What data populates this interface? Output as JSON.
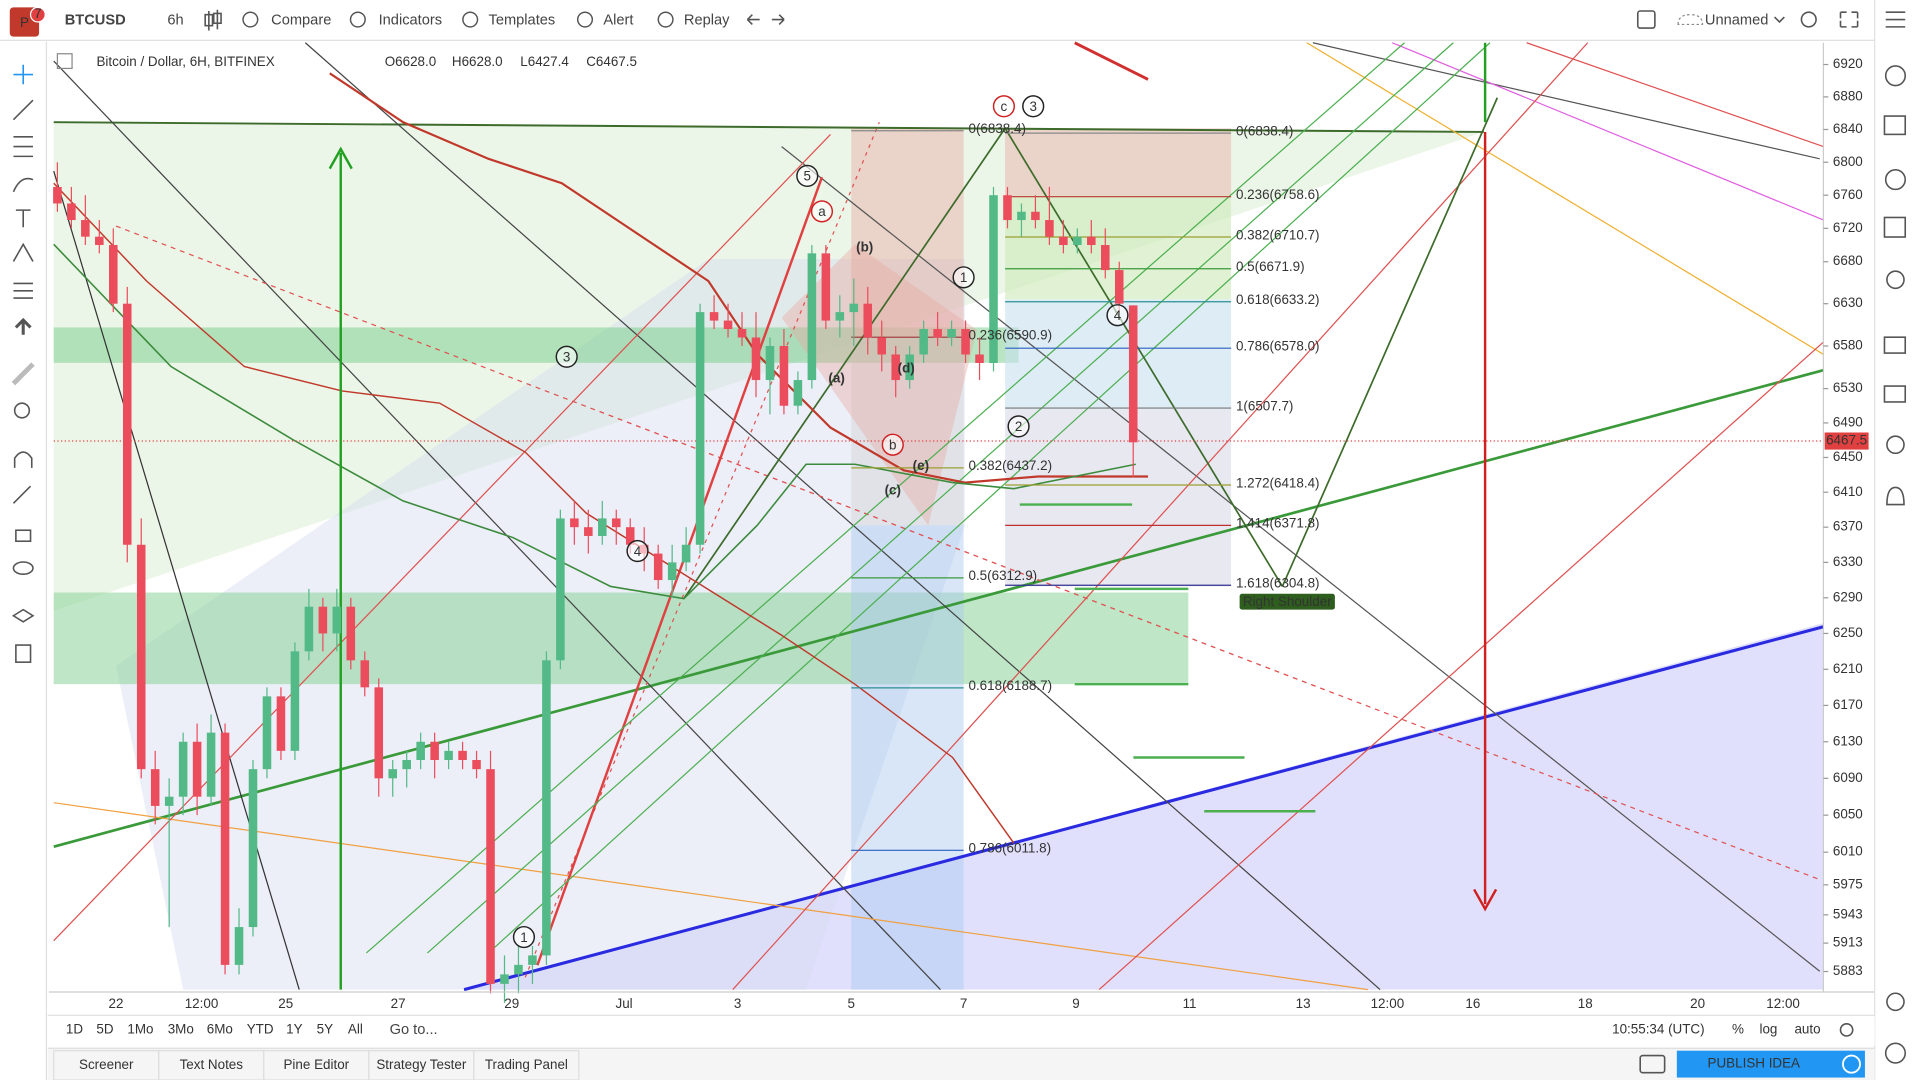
{
  "toolbar": {
    "logo": "P",
    "badge": "7",
    "symbol": "BTCUSD",
    "interval": "6h",
    "items": [
      "Compare",
      "Indicators",
      "Templates",
      "Alert",
      "Replay"
    ],
    "layout_name": "Unnamed"
  },
  "legend": {
    "title": "Bitcoin / Dollar, 6H, BITFINEX",
    "open": "O6628.0",
    "high": "H6628.0",
    "low": "L6427.4",
    "close": "C6467.5"
  },
  "price_axis": {
    "scale": "log",
    "ylim": [
      5864,
      6947
    ],
    "yticks": [
      6920,
      6880,
      6840,
      6800,
      6760,
      6720,
      6680,
      6630,
      6580,
      6530,
      6490,
      6450,
      6410,
      6370,
      6330,
      6290,
      6250,
      6210,
      6170,
      6130,
      6090,
      6050,
      6010,
      5975,
      5943,
      5913,
      5883
    ],
    "last_price": "6467.5"
  },
  "time_axis": {
    "labels": [
      "22",
      "12:00",
      "25",
      "27",
      "29",
      "Jul",
      "3",
      "5",
      "7",
      "9",
      "11",
      "13",
      "12:00",
      "16",
      "18",
      "20",
      "12:00"
    ]
  },
  "candles": {
    "up_color": "#53b987",
    "down_color": "#eb4d5c",
    "ohlc": [
      [
        6770,
        6800,
        6740,
        6750
      ],
      [
        6750,
        6770,
        6720,
        6730
      ],
      [
        6730,
        6760,
        6700,
        6710
      ],
      [
        6710,
        6730,
        6690,
        6700
      ],
      [
        6700,
        6720,
        6620,
        6630
      ],
      [
        6630,
        6650,
        6330,
        6350
      ],
      [
        6350,
        6380,
        6090,
        6100
      ],
      [
        6100,
        6120,
        6040,
        6060
      ],
      [
        6060,
        6090,
        5930,
        6070
      ],
      [
        6070,
        6140,
        6050,
        6130
      ],
      [
        6130,
        6150,
        6050,
        6070
      ],
      [
        6070,
        6160,
        6060,
        6140
      ],
      [
        6140,
        6150,
        5880,
        5890
      ],
      [
        5890,
        5950,
        5880,
        5930
      ],
      [
        5930,
        6110,
        5920,
        6100
      ],
      [
        6100,
        6190,
        6090,
        6180
      ],
      [
        6180,
        6190,
        6110,
        6120
      ],
      [
        6120,
        6240,
        6110,
        6230
      ],
      [
        6230,
        6300,
        6220,
        6280
      ],
      [
        6280,
        6290,
        6230,
        6250
      ],
      [
        6250,
        6300,
        6230,
        6280
      ],
      [
        6280,
        6290,
        6210,
        6220
      ],
      [
        6220,
        6230,
        6180,
        6190
      ],
      [
        6190,
        6200,
        6070,
        6090
      ],
      [
        6090,
        6110,
        6070,
        6100
      ],
      [
        6100,
        6120,
        6080,
        6110
      ],
      [
        6110,
        6140,
        6100,
        6130
      ],
      [
        6130,
        6140,
        6090,
        6110
      ],
      [
        6110,
        6130,
        6100,
        6120
      ],
      [
        6120,
        6130,
        6100,
        6110
      ],
      [
        6110,
        6120,
        6090,
        6100
      ],
      [
        6100,
        6120,
        5860,
        5870
      ],
      [
        5870,
        5900,
        5850,
        5880
      ],
      [
        5880,
        5910,
        5860,
        5890
      ],
      [
        5890,
        5910,
        5870,
        5900
      ],
      [
        5900,
        6230,
        5890,
        6220
      ],
      [
        6220,
        6390,
        6210,
        6380
      ],
      [
        6380,
        6400,
        6350,
        6370
      ],
      [
        6370,
        6390,
        6340,
        6360
      ],
      [
        6360,
        6400,
        6350,
        6380
      ],
      [
        6380,
        6390,
        6350,
        6370
      ],
      [
        6370,
        6380,
        6340,
        6350
      ],
      [
        6350,
        6370,
        6320,
        6340
      ],
      [
        6340,
        6350,
        6300,
        6310
      ],
      [
        6310,
        6350,
        6290,
        6330
      ],
      [
        6330,
        6370,
        6320,
        6350
      ],
      [
        6350,
        6630,
        6340,
        6620
      ],
      [
        6620,
        6640,
        6600,
        6610
      ],
      [
        6610,
        6630,
        6590,
        6600
      ],
      [
        6600,
        6620,
        6580,
        6590
      ],
      [
        6590,
        6620,
        6520,
        6540
      ],
      [
        6540,
        6590,
        6500,
        6580
      ],
      [
        6580,
        6600,
        6500,
        6510
      ],
      [
        6510,
        6550,
        6500,
        6540
      ],
      [
        6540,
        6700,
        6530,
        6690
      ],
      [
        6690,
        6700,
        6600,
        6610
      ],
      [
        6610,
        6640,
        6590,
        6620
      ],
      [
        6620,
        6660,
        6580,
        6630
      ],
      [
        6630,
        6650,
        6570,
        6590
      ],
      [
        6590,
        6610,
        6550,
        6570
      ],
      [
        6570,
        6580,
        6520,
        6540
      ],
      [
        6540,
        6580,
        6530,
        6570
      ],
      [
        6570,
        6610,
        6560,
        6600
      ],
      [
        6600,
        6620,
        6580,
        6590
      ],
      [
        6590,
        6610,
        6580,
        6600
      ],
      [
        6600,
        6610,
        6560,
        6570
      ],
      [
        6570,
        6590,
        6540,
        6560
      ],
      [
        6560,
        6770,
        6550,
        6760
      ],
      [
        6760,
        6770,
        6720,
        6730
      ],
      [
        6730,
        6750,
        6710,
        6740
      ],
      [
        6740,
        6760,
        6720,
        6730
      ],
      [
        6730,
        6770,
        6700,
        6710
      ],
      [
        6710,
        6730,
        6690,
        6700
      ],
      [
        6700,
        6720,
        6690,
        6710
      ],
      [
        6710,
        6730,
        6690,
        6700
      ],
      [
        6700,
        6720,
        6660,
        6670
      ],
      [
        6670,
        6680,
        6620,
        6630
      ],
      [
        6628,
        6628,
        6427.4,
        6467.5
      ]
    ]
  },
  "fib_labels": [
    "0(6838.4)",
    "0.236(6590.9)",
    "0.382(6437.2)",
    "0.5(6312.9)",
    "0.618(6188.7)",
    "0.786(6011.8)",
    "0(6838.4)",
    "0.236(6758.6)",
    "0.382(6710.7)",
    "0.5(6671.9)",
    "0.618(6633.2)",
    "0.786(6578.0)",
    "1(6507.7)",
    "1.272(6418.4)",
    "1.414(6371.8)",
    "1.618(6304.8)"
  ],
  "wave_labels": [
    "5",
    "a",
    "(b)",
    "1",
    "(a)",
    "(d)",
    "b",
    "(e)",
    "(c)",
    "3",
    "4",
    "c",
    "3",
    "4",
    "2",
    "1"
  ],
  "annotation": "Right Shoulder",
  "bottom_bar": {
    "ranges": [
      "1D",
      "5D",
      "1Mo",
      "3Mo",
      "6Mo",
      "YTD",
      "1Y",
      "5Y",
      "All"
    ],
    "goto": "Go to...",
    "clock": "10:55:34 (UTC)",
    "percent": "%",
    "log": "log",
    "auto": "auto"
  },
  "tabs": [
    "Screener",
    "Text Notes",
    "Pine Editor",
    "Strategy Tester",
    "Trading Panel"
  ],
  "publish": "PUBLISH IDEA"
}
